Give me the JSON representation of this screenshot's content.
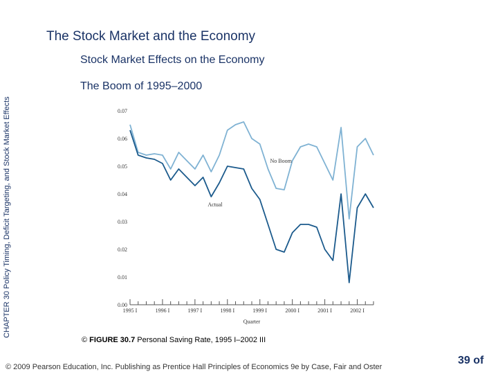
{
  "slide": {
    "title": "The Stock Market and the Economy",
    "section_title": "Stock Market Effects on the Economy",
    "subtitle": "The Boom of 1995–2000",
    "side_text": "CHAPTER 30 Policy Timing, Deficit Targeting, and Stock Market Effects",
    "caption_label": "FIGURE 30.7",
    "caption_text": "Personal Saving Rate, 1995 I–2002 III",
    "footer": "© 2009 Pearson Education, Inc. Publishing as Prentice Hall Principles of Economics 9e by Case, Fair and Oster",
    "page_number": "39 of"
  },
  "chart_data": {
    "type": "line",
    "xlabel": "Quarter",
    "ylabel": "",
    "ylim": [
      0,
      0.07
    ],
    "yticks": [
      "0.00",
      "0.01",
      "0.02",
      "0.03",
      "0.04",
      "0.05",
      "0.06",
      "0.07"
    ],
    "xticks": [
      "1995 I",
      "1996 I",
      "1997 I",
      "1998 I",
      "1999 I",
      "2000 I",
      "2001 I",
      "2002 I"
    ],
    "grid": false,
    "series": [
      {
        "name": "No Boom",
        "color": "#7fb2d3",
        "values": [
          0.065,
          0.055,
          0.054,
          0.0545,
          0.054,
          0.049,
          0.055,
          0.052,
          0.049,
          0.054,
          0.048,
          0.054,
          0.063,
          0.065,
          0.066,
          0.06,
          0.058,
          0.049,
          0.042,
          0.0415,
          0.052,
          0.057,
          0.058,
          0.057,
          0.051,
          0.045,
          0.064,
          0.031,
          0.057,
          0.06,
          0.054
        ]
      },
      {
        "name": "Actual",
        "color": "#1b5a8c",
        "values": [
          0.063,
          0.054,
          0.053,
          0.0525,
          0.051,
          0.045,
          0.049,
          0.046,
          0.043,
          0.046,
          0.039,
          0.044,
          0.05,
          0.0495,
          0.049,
          0.042,
          0.038,
          0.029,
          0.02,
          0.019,
          0.026,
          0.029,
          0.029,
          0.028,
          0.02,
          0.016,
          0.04,
          0.008,
          0.035,
          0.04,
          0.035
        ]
      }
    ]
  }
}
